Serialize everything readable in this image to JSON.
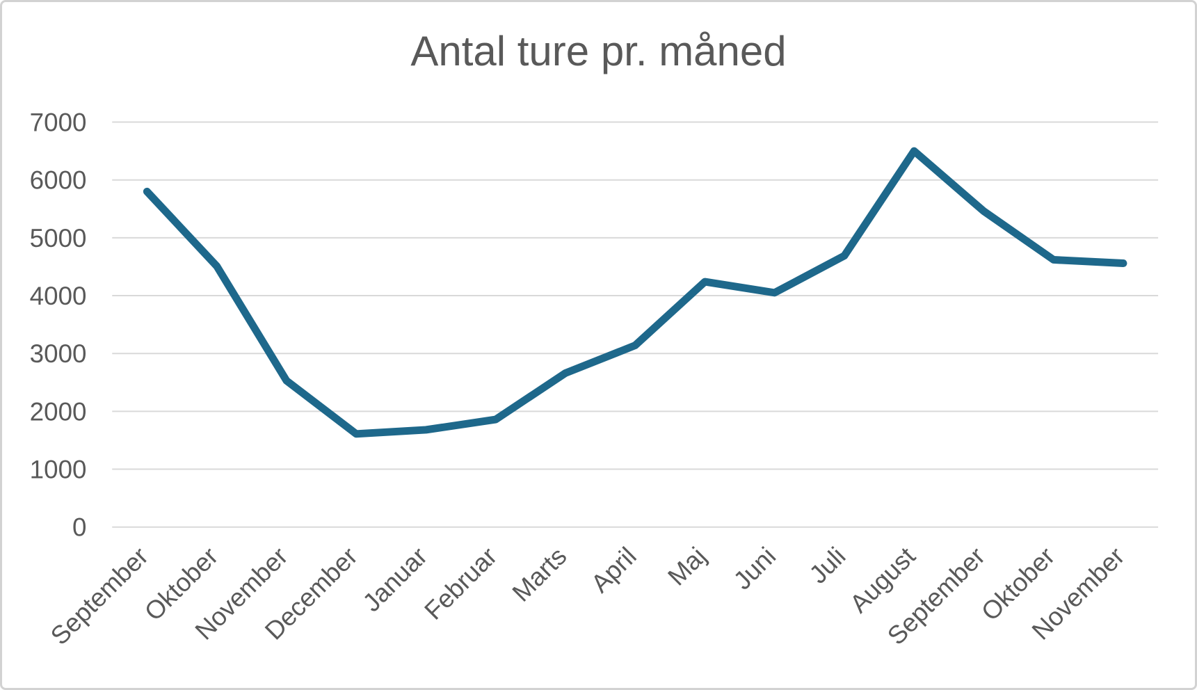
{
  "chart_data": {
    "type": "line",
    "title": "Antal ture pr. måned",
    "categories": [
      "September",
      "Oktober",
      "November",
      "December",
      "Januar",
      "Februar",
      "Marts",
      "April",
      "Maj",
      "Juni",
      "Juli",
      "August",
      "September",
      "Oktober",
      "November"
    ],
    "values": [
      5800,
      4510,
      2530,
      1610,
      1680,
      1860,
      2660,
      3140,
      4240,
      4050,
      4690,
      6500,
      5460,
      4620,
      4560
    ],
    "yticks": [
      0,
      1000,
      2000,
      3000,
      4000,
      5000,
      6000,
      7000
    ],
    "ylim": [
      0,
      7000
    ],
    "xlabel": "",
    "ylabel": "",
    "grid": true,
    "legend": "none",
    "x_label_rotation_deg": -45,
    "line_color": "#1e688b",
    "gridline_color": "#d9d9d9",
    "axis_label_color": "#595959",
    "title_color": "#595959",
    "background_color": "#ffffff",
    "border_color": "#d2d2d2"
  }
}
